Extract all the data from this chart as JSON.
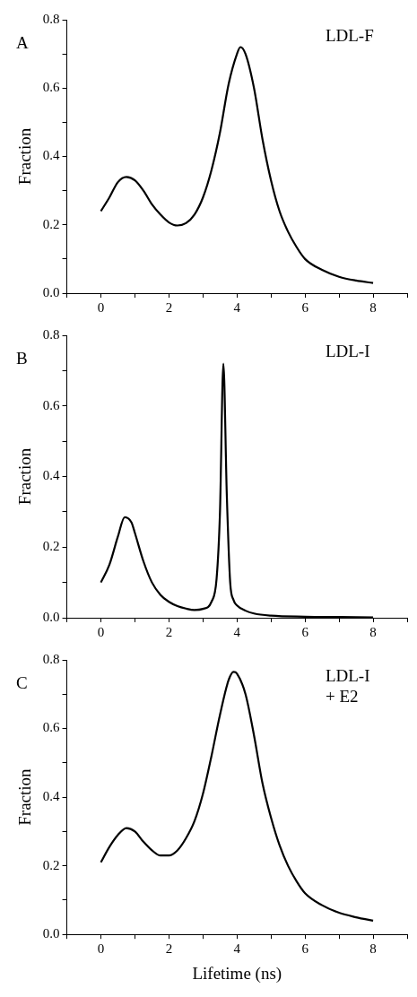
{
  "chart_data": [
    {
      "type": "line",
      "title": "A",
      "annotations": [
        "LDL-F"
      ],
      "ylabel": "Fraction",
      "grid": false,
      "legend": false,
      "marker": "none",
      "line_style": "solid",
      "xlim": [
        -1,
        9
      ],
      "xticks": [
        {
          "value": -1,
          "label": null
        },
        0,
        {
          "value": 1,
          "label": null
        },
        2,
        {
          "value": 3,
          "label": null
        },
        4,
        {
          "value": 5,
          "label": null
        },
        6,
        {
          "value": 7,
          "label": null
        },
        8,
        {
          "value": 9,
          "label": null
        }
      ],
      "ylim": [
        0,
        0.8
      ],
      "yticks": [
        {
          "value": 0,
          "label": "0.0"
        },
        {
          "value": 0.1,
          "label": null
        },
        0.2,
        {
          "value": 0.3,
          "label": null
        },
        0.4,
        {
          "value": 0.5,
          "label": null
        },
        0.6,
        {
          "value": 0.7,
          "label": null
        },
        0.8
      ],
      "series": [
        {
          "color": "#000000",
          "x": [
            0,
            0.25,
            0.5,
            0.75,
            1.0,
            1.25,
            1.5,
            1.75,
            2.0,
            2.25,
            2.5,
            2.75,
            3.0,
            3.25,
            3.5,
            3.75,
            4.0,
            4.1,
            4.25,
            4.5,
            4.75,
            5.0,
            5.25,
            5.5,
            5.75,
            6.0,
            6.5,
            7.0,
            7.5,
            8.0
          ],
          "values": [
            0.24,
            0.28,
            0.325,
            0.34,
            0.33,
            0.3,
            0.26,
            0.23,
            0.207,
            0.198,
            0.205,
            0.23,
            0.28,
            0.36,
            0.47,
            0.61,
            0.7,
            0.72,
            0.7,
            0.6,
            0.45,
            0.33,
            0.24,
            0.18,
            0.135,
            0.1,
            0.068,
            0.048,
            0.037,
            0.03
          ]
        }
      ]
    },
    {
      "type": "line",
      "title": "B",
      "annotations": [
        "LDL-I"
      ],
      "ylabel": "Fraction",
      "grid": false,
      "legend": false,
      "marker": "none",
      "line_style": "solid",
      "xlim": [
        -1,
        9
      ],
      "xticks": [
        {
          "value": -1,
          "label": null
        },
        0,
        {
          "value": 1,
          "label": null
        },
        2,
        {
          "value": 3,
          "label": null
        },
        4,
        {
          "value": 5,
          "label": null
        },
        6,
        {
          "value": 7,
          "label": null
        },
        8,
        {
          "value": 9,
          "label": null
        }
      ],
      "ylim": [
        0,
        0.8
      ],
      "yticks": [
        {
          "value": 0,
          "label": "0.0"
        },
        {
          "value": 0.1,
          "label": null
        },
        0.2,
        {
          "value": 0.3,
          "label": null
        },
        0.4,
        {
          "value": 0.5,
          "label": null
        },
        0.6,
        {
          "value": 0.7,
          "label": null
        },
        0.8
      ],
      "series": [
        {
          "color": "#000000",
          "x": [
            0,
            0.25,
            0.5,
            0.7,
            0.9,
            1.0,
            1.25,
            1.5,
            1.75,
            2.0,
            2.25,
            2.5,
            2.75,
            3.0,
            3.25,
            3.4,
            3.5,
            3.6,
            3.7,
            3.8,
            3.9,
            4.0,
            4.25,
            4.5,
            5.0,
            6.0,
            7.0,
            8.0
          ],
          "values": [
            0.1,
            0.15,
            0.23,
            0.285,
            0.27,
            0.24,
            0.16,
            0.1,
            0.065,
            0.045,
            0.033,
            0.026,
            0.022,
            0.025,
            0.045,
            0.11,
            0.3,
            0.72,
            0.35,
            0.1,
            0.05,
            0.035,
            0.02,
            0.012,
            0.006,
            0.003,
            0.002,
            0.001
          ]
        }
      ]
    },
    {
      "type": "line",
      "title": "C",
      "annotations": [
        "LDL-I\n+ E2"
      ],
      "xlabel": "Lifetime (ns)",
      "ylabel": "Fraction",
      "grid": false,
      "legend": false,
      "marker": "none",
      "line_style": "solid",
      "xlim": [
        -1,
        9
      ],
      "xticks": [
        {
          "value": -1,
          "label": null
        },
        0,
        {
          "value": 1,
          "label": null
        },
        2,
        {
          "value": 3,
          "label": null
        },
        4,
        {
          "value": 5,
          "label": null
        },
        6,
        {
          "value": 7,
          "label": null
        },
        8,
        {
          "value": 9,
          "label": null
        }
      ],
      "ylim": [
        0,
        0.8
      ],
      "yticks": [
        {
          "value": 0,
          "label": "0.0"
        },
        {
          "value": 0.1,
          "label": null
        },
        0.2,
        {
          "value": 0.3,
          "label": null
        },
        0.4,
        {
          "value": 0.5,
          "label": null
        },
        0.6,
        {
          "value": 0.7,
          "label": null
        },
        0.8
      ],
      "series": [
        {
          "color": "#000000",
          "x": [
            0,
            0.25,
            0.5,
            0.75,
            1.0,
            1.25,
            1.5,
            1.75,
            2.0,
            2.25,
            2.5,
            2.75,
            3.0,
            3.25,
            3.5,
            3.75,
            3.9,
            4.0,
            4.25,
            4.5,
            4.75,
            5.0,
            5.25,
            5.5,
            5.75,
            6.0,
            6.5,
            7.0,
            7.5,
            8.0
          ],
          "values": [
            0.21,
            0.255,
            0.29,
            0.31,
            0.3,
            0.27,
            0.245,
            0.23,
            0.23,
            0.245,
            0.28,
            0.33,
            0.41,
            0.52,
            0.64,
            0.74,
            0.765,
            0.76,
            0.7,
            0.58,
            0.44,
            0.34,
            0.26,
            0.2,
            0.155,
            0.12,
            0.085,
            0.063,
            0.05,
            0.04
          ]
        }
      ]
    }
  ]
}
